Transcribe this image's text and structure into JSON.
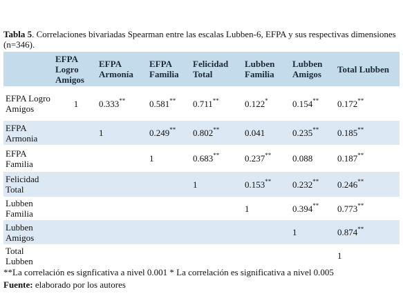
{
  "caption": {
    "label": "Tabla 5",
    "text": ". Correlaciones bivariadas Spearman entre las escalas Lubben-6, EFPA y sus respectivas dimensiones (n=346)."
  },
  "table": {
    "header": [
      "EFPA Logro Amigos",
      "EFPA Armonía",
      "EFPA Familia",
      "Felicidad Total",
      "Lubben Familia",
      "Lubben Amigos",
      "Total Lubben"
    ],
    "rows": [
      {
        "label": "EFPA Logro Amigos",
        "cells": [
          {
            "value": 1
          },
          {
            "value": 0.333,
            "sig": "**"
          },
          {
            "value": 0.581,
            "sig": "**"
          },
          {
            "value": 0.711,
            "sig": "**"
          },
          {
            "value": 0.122,
            "sig": "*"
          },
          {
            "value": 0.154,
            "sig": "**"
          },
          {
            "value": 0.172,
            "sig": "**"
          }
        ]
      },
      {
        "label": "EFPA Armonia",
        "cells": [
          null,
          {
            "value": 1
          },
          {
            "value": 0.249,
            "sig": "**"
          },
          {
            "value": 0.802,
            "sig": "**"
          },
          {
            "value": 0.041
          },
          {
            "value": 0.235,
            "sig": "**"
          },
          {
            "value": 0.185,
            "sig": "**"
          }
        ]
      },
      {
        "label": "EFPA Familia",
        "cells": [
          null,
          null,
          {
            "value": 1
          },
          {
            "value": 0.683,
            "sig": "**"
          },
          {
            "value": 0.237,
            "sig": "**"
          },
          {
            "value": 0.088
          },
          {
            "value": 0.187,
            "sig": "**"
          }
        ]
      },
      {
        "label": "Felicidad Total",
        "cells": [
          null,
          null,
          null,
          {
            "value": 1
          },
          {
            "value": 0.153,
            "sig": "**"
          },
          {
            "value": 0.232,
            "sig": "**"
          },
          {
            "value": 0.246,
            "sig": "**"
          }
        ]
      },
      {
        "label": "Lubben Familia",
        "cells": [
          null,
          null,
          null,
          null,
          {
            "value": 1
          },
          {
            "value": 0.394,
            "sig": "**"
          },
          {
            "value": 0.773,
            "sig": "**"
          }
        ]
      },
      {
        "label": "Lubben Amigos",
        "cells": [
          null,
          null,
          null,
          null,
          null,
          {
            "value": 1
          },
          {
            "value": 0.874,
            "sig": "**"
          }
        ]
      },
      {
        "label": "Total Lubben",
        "cells": [
          null,
          null,
          null,
          null,
          null,
          null,
          {
            "value": 1
          }
        ]
      }
    ]
  },
  "note": "**La correlación es signficativa a nivel 0.001 * La correlación es significativa a nivel 0.005",
  "source": {
    "label": "Fuente:",
    "text": " elaborado por los autores"
  }
}
